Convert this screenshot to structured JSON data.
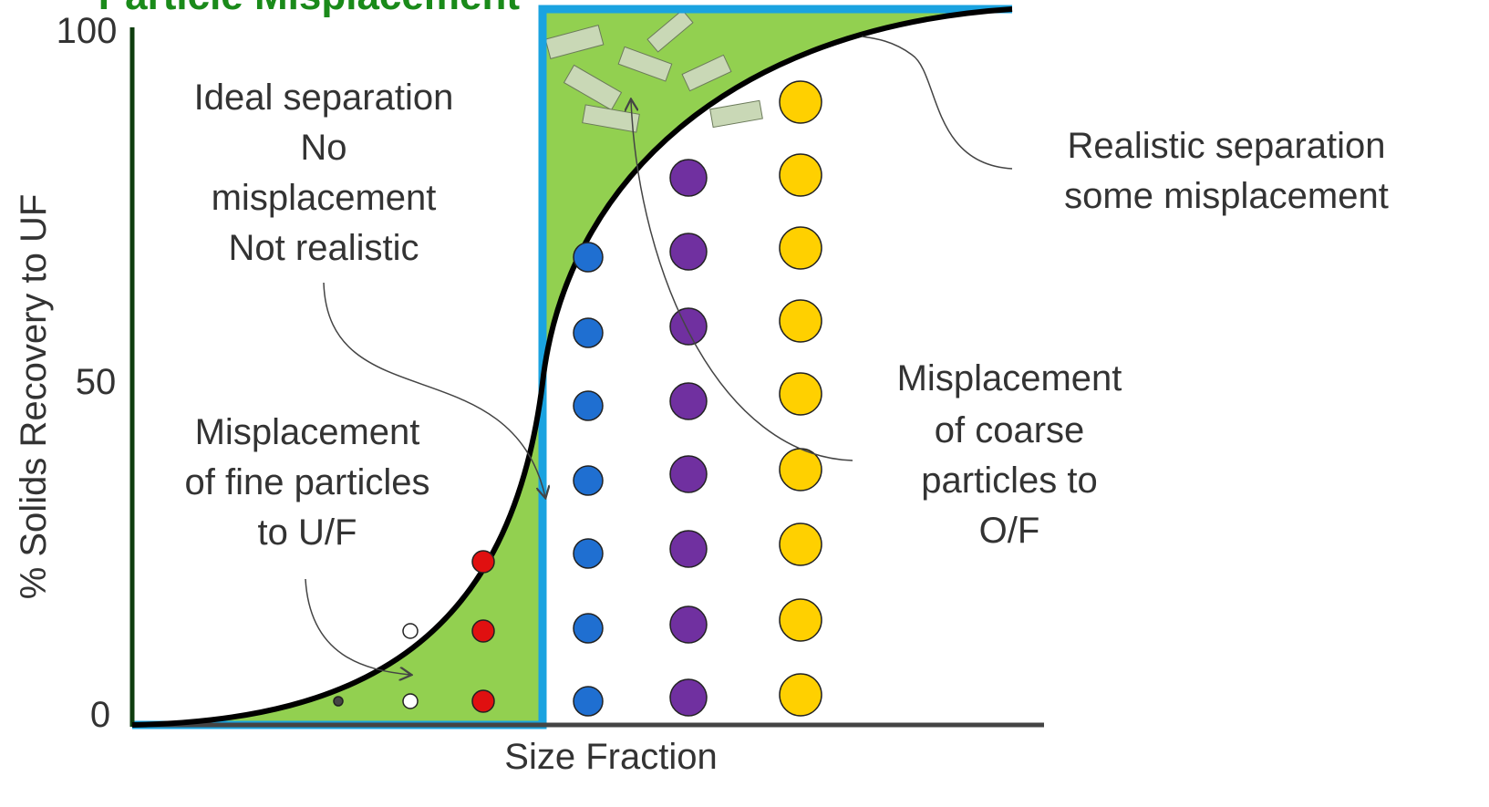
{
  "header": {
    "title": "Particle Misplacement"
  },
  "axes": {
    "y_label": "% Solids Recovery  to UF",
    "x_label": "Size Fraction",
    "y_ticks": [
      "100",
      "50",
      "0"
    ]
  },
  "annotations": {
    "ideal": [
      "Ideal separation",
      "No",
      "misplacement",
      "Not realistic"
    ],
    "realistic": [
      "Realistic separation",
      "some misplacement"
    ],
    "fine": [
      "Misplacement",
      "of fine particles",
      "to U/F"
    ],
    "coarse": [
      "Misplacement",
      "of coarse",
      "particles to",
      "O/F"
    ]
  }
}
